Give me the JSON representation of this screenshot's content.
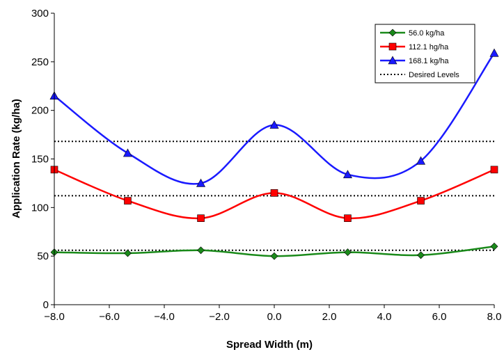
{
  "chart_data": {
    "type": "line",
    "xlabel": "Spread Width (m)",
    "ylabel": "Application Rate (kg/ha)",
    "xlim": [
      -8.0,
      8.0
    ],
    "ylim": [
      0,
      300
    ],
    "x_ticks": [
      -8,
      -6,
      -4,
      -2,
      0,
      2,
      4,
      6,
      8
    ],
    "x_tick_labels": [
      "−8.0",
      "−6.0",
      "−4.0",
      "−2.0",
      "0.0",
      "2.0",
      "4.0",
      "6.0",
      "8.0"
    ],
    "y_ticks": [
      0,
      50,
      100,
      150,
      200,
      250,
      300
    ],
    "y_tick_labels": [
      "0",
      "50",
      "100",
      "150",
      "200",
      "250",
      "300"
    ],
    "grid": false,
    "smooth": true,
    "legend_position": "top-right",
    "x": [
      -8.0,
      -5.33,
      -2.67,
      0.0,
      2.67,
      5.33,
      8.0
    ],
    "series": [
      {
        "name": "56.0 kg/ha",
        "color": "#1a8a1a",
        "marker": "diamond",
        "values": [
          54,
          53,
          56,
          50,
          54,
          51,
          60
        ]
      },
      {
        "name": "112.1 hg/ha",
        "color": "#ff0000",
        "marker": "square",
        "values": [
          139,
          107,
          89,
          115,
          89,
          107,
          139
        ]
      },
      {
        "name": "168.1 kg/ha",
        "color": "#1a1aff",
        "marker": "triangle",
        "values": [
          215,
          156,
          125,
          185,
          134,
          148,
          259
        ]
      }
    ],
    "reference_lines": [
      {
        "name": "Desired Levels",
        "style": "dotted",
        "color": "#000000",
        "values": [
          56.0,
          112.1,
          168.1
        ]
      }
    ]
  }
}
